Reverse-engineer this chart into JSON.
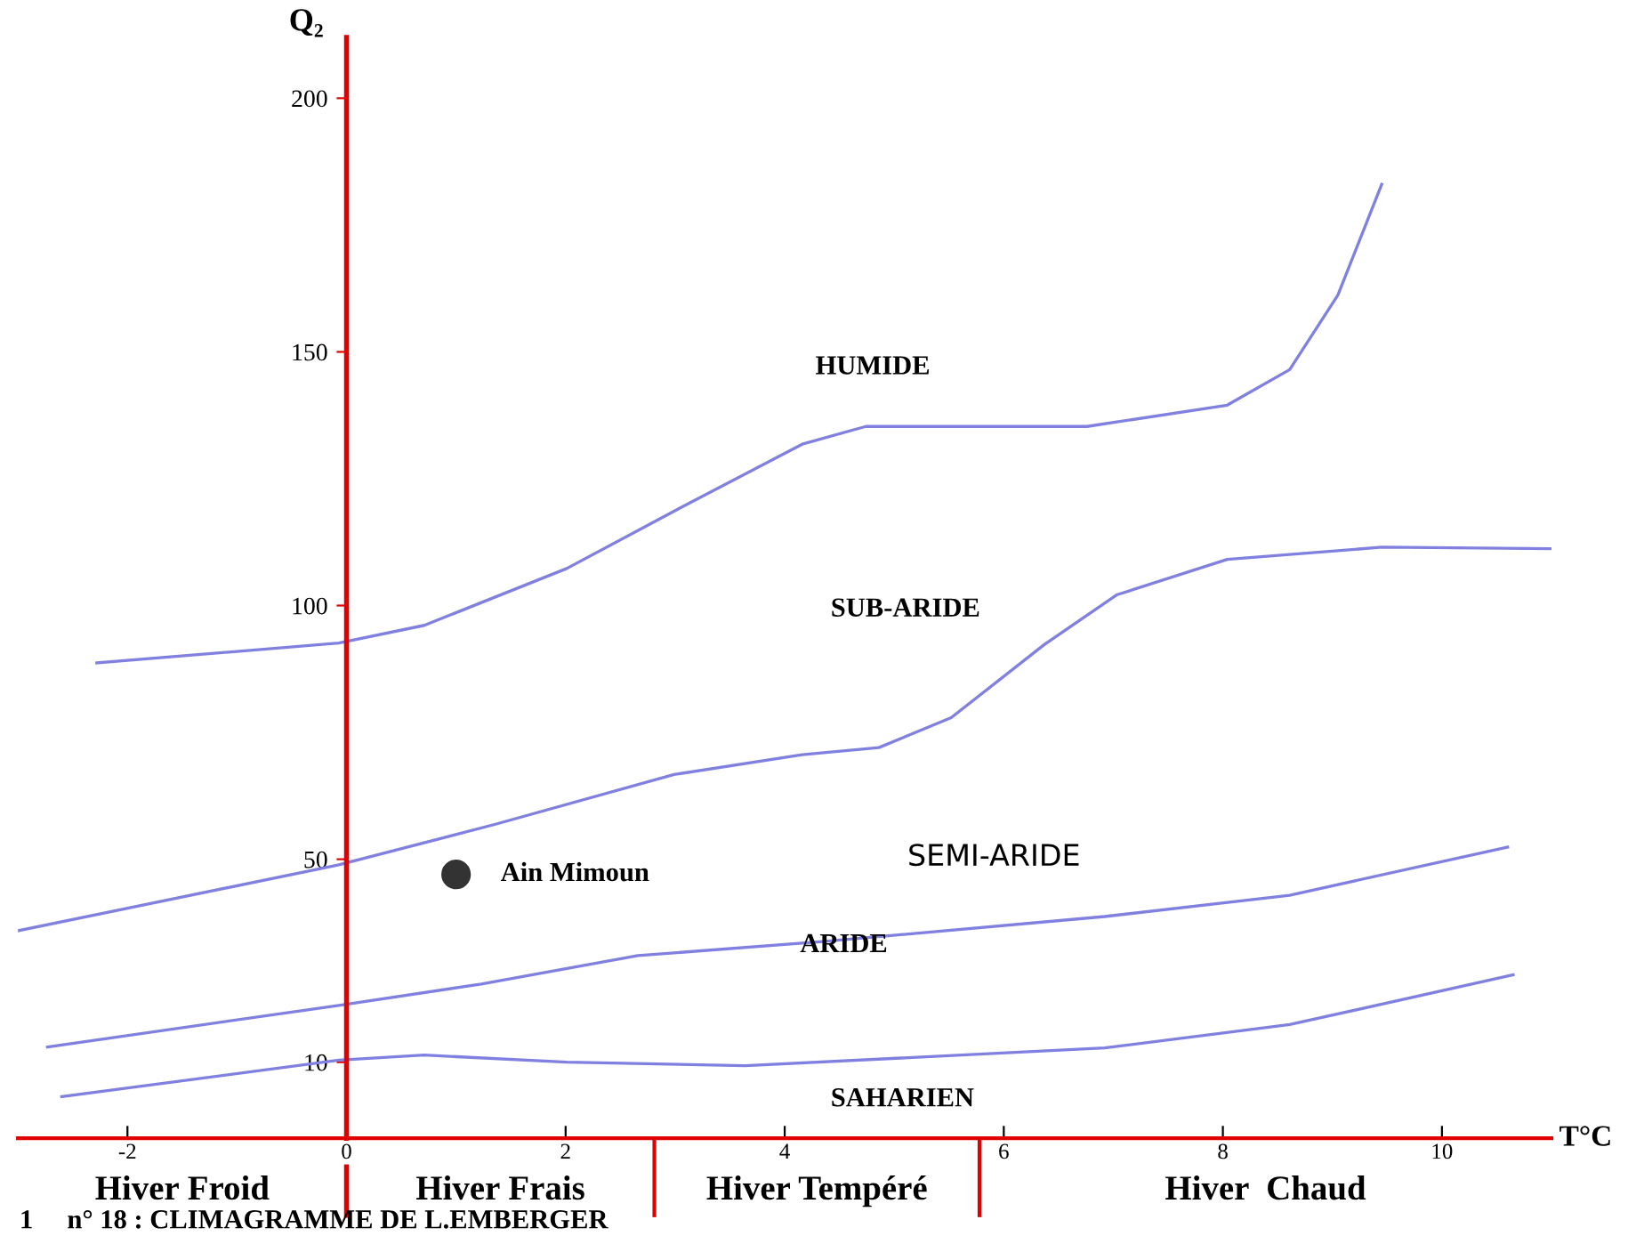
{
  "chart_data": {
    "type": "line",
    "xlabel": "T°C",
    "ylabel": "Q₂",
    "xlim": [
      -3.0,
      11.0
    ],
    "ylim": [
      -5,
      212
    ],
    "xticks": [
      -2,
      0,
      2,
      4,
      6,
      8,
      10
    ],
    "yticks": [
      10,
      50,
      100,
      150,
      200
    ],
    "grid": false,
    "marker": "none",
    "line_style": "solid",
    "series": [
      {
        "x": [
          -2.28,
          -0.07,
          0.71,
          2.01,
          2.99,
          4.16,
          4.74,
          6.76,
          8.04,
          8.61,
          9.05,
          9.45
        ],
        "values": [
          88.7,
          92.6,
          96.1,
          107.3,
          118.6,
          131.8,
          135.3,
          135.3,
          139.5,
          146.5,
          161.2,
          183
        ],
        "color": "#8080e0"
      },
      {
        "x": [
          -3.0,
          -0.07,
          1.36,
          2.99,
          4.16,
          4.86,
          5.52,
          6.37,
          7.03,
          8.04,
          9.45,
          11.0
        ],
        "values": [
          35.9,
          48.9,
          56.9,
          66.7,
          70.6,
          72.0,
          77.9,
          92.3,
          102.1,
          109.1,
          111.5,
          111.2
        ],
        "color": "#8080e0"
      },
      {
        "x": [
          -2.73,
          -0.07,
          1.23,
          2.66,
          4.37,
          6.92,
          8.61,
          10.6
        ],
        "values": [
          13.0,
          21.2,
          25.4,
          31.0,
          33.8,
          38.7,
          42.9,
          52.4
        ],
        "color": "#8080e0"
      },
      {
        "x": [
          -2.6,
          -0.07,
          0.71,
          2.01,
          3.64,
          6.92,
          8.61,
          10.65
        ],
        "values": [
          3.2,
          10.4,
          11.4,
          10.0,
          9.3,
          12.8,
          17.4,
          27.2
        ],
        "color": "#8080e0"
      },
      {
        "type": "scatter",
        "marker": "circle",
        "x": [
          1.0
        ],
        "values": [
          47
        ],
        "color": "#333333"
      }
    ],
    "annotations": [
      {
        "text": "Ain Mimoun",
        "x": 1.0,
        "y": 47
      },
      "HUMIDE",
      "SUB-ARIDE",
      "SEMI-ARIDE",
      "ARIDE",
      "SAHARIEN",
      "Hiver Froid",
      "Hiver Frais",
      "Hiver Tempéré",
      "Hiver  Chaud",
      "1     n° 18 : CLIMAGRAMME DE L.EMBERGER"
    ]
  }
}
